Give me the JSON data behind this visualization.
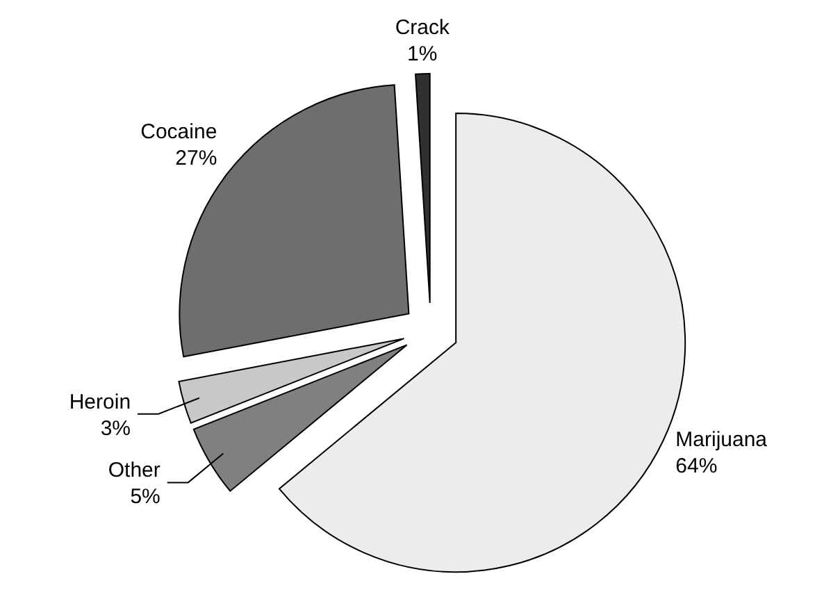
{
  "chart_data": {
    "type": "pie",
    "categories": [
      "Marijuana",
      "Other",
      "Heroin",
      "Cocaine",
      "Crack"
    ],
    "values": [
      64,
      5,
      3,
      27,
      1
    ],
    "value_labels": [
      "64%",
      "5%",
      "3%",
      "27%",
      "1%"
    ],
    "colors": [
      "#ececec",
      "#808080",
      "#c8c8c8",
      "#6e6e6e",
      "#303030"
    ]
  }
}
